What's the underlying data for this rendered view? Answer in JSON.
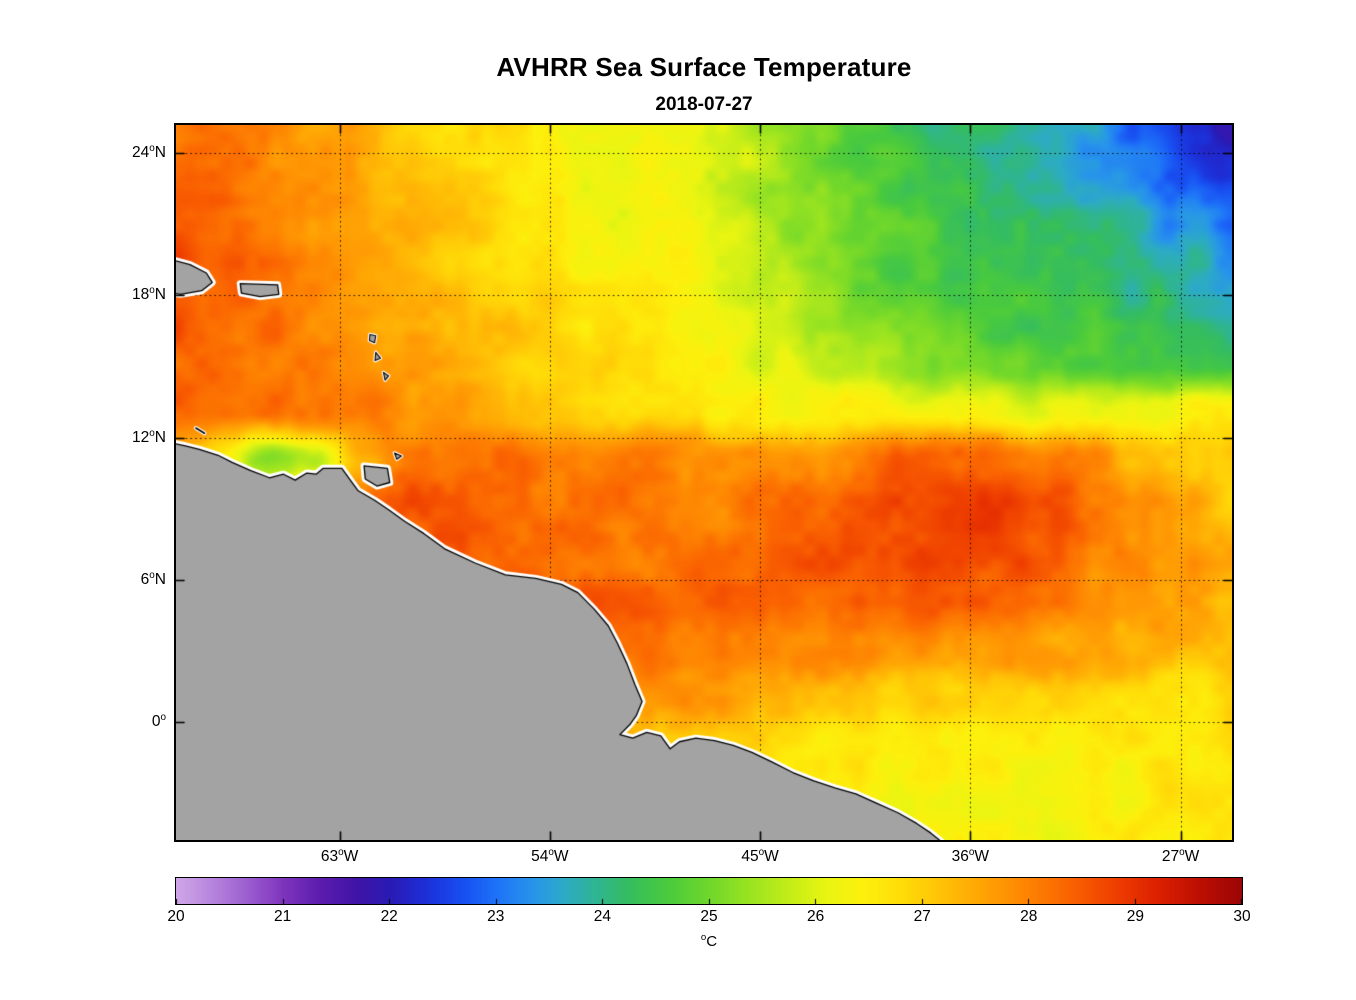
{
  "chart_data": {
    "type": "heatmap",
    "title": "AVHRR Sea Surface Temperature",
    "subtitle": "2018-07-27",
    "degree_glyph": "o",
    "x_axis": {
      "range": [
        -70,
        -24.8
      ],
      "ticks": [
        {
          "value": -63,
          "num": "63",
          "hemi": "W",
          "text": "63°W"
        },
        {
          "value": -54,
          "num": "54",
          "hemi": "W",
          "text": "54°W"
        },
        {
          "value": -45,
          "num": "45",
          "hemi": "W",
          "text": "45°W"
        },
        {
          "value": -36,
          "num": "36",
          "hemi": "W",
          "text": "36°W"
        },
        {
          "value": -27,
          "num": "27",
          "hemi": "W",
          "text": "27°W"
        }
      ]
    },
    "y_axis": {
      "range": [
        -5,
        25.2
      ],
      "ticks": [
        {
          "value": 24,
          "num": "24",
          "hemi": "N",
          "text": "24°N"
        },
        {
          "value": 18,
          "num": "18",
          "hemi": "N",
          "text": "18°N"
        },
        {
          "value": 12,
          "num": "12",
          "hemi": "N",
          "text": "12°N"
        },
        {
          "value": 6,
          "num": "6",
          "hemi": "N",
          "text": "6°N"
        },
        {
          "value": 0,
          "num": "0",
          "hemi": "",
          "text": "0°"
        }
      ]
    },
    "grid_lines": {
      "lon": [
        -63,
        -54,
        -45,
        -36,
        -27
      ],
      "lat": [
        24,
        18,
        12,
        6,
        0
      ],
      "style": "dotted"
    },
    "colorbar": {
      "range": [
        20,
        30
      ],
      "ticks": [
        20,
        21,
        22,
        23,
        24,
        25,
        26,
        27,
        28,
        29,
        30
      ],
      "unit": "°C",
      "unit_letter": "C",
      "colormap_stops": [
        [
          20.0,
          "#cfa7e8"
        ],
        [
          20.35,
          "#b583dc"
        ],
        [
          20.7,
          "#9a5ace"
        ],
        [
          21.0,
          "#7e35bc"
        ],
        [
          21.35,
          "#5d1cae"
        ],
        [
          21.7,
          "#3f14a6"
        ],
        [
          22.0,
          "#2a1ab4"
        ],
        [
          22.35,
          "#1c30d8"
        ],
        [
          22.7,
          "#1850f2"
        ],
        [
          23.0,
          "#1e72f8"
        ],
        [
          23.35,
          "#2795ea"
        ],
        [
          23.65,
          "#2cabc4"
        ],
        [
          23.95,
          "#2fb590"
        ],
        [
          24.25,
          "#35bd5e"
        ],
        [
          24.6,
          "#49ca3e"
        ],
        [
          25.0,
          "#6fd72b"
        ],
        [
          25.4,
          "#9ce420"
        ],
        [
          25.8,
          "#c9ee18"
        ],
        [
          26.1,
          "#e9f511"
        ],
        [
          26.45,
          "#fdf00c"
        ],
        [
          26.8,
          "#ffdd08"
        ],
        [
          27.2,
          "#ffc106"
        ],
        [
          27.6,
          "#ffa104"
        ],
        [
          28.0,
          "#fe8302"
        ],
        [
          28.4,
          "#fa6201"
        ],
        [
          28.8,
          "#ef4000"
        ],
        [
          29.2,
          "#dd2100"
        ],
        [
          29.6,
          "#bd0f03"
        ],
        [
          30.0,
          "#9c0505"
        ]
      ]
    },
    "sst_grid": {
      "lon_min": -70,
      "lon_max": -24.8,
      "lat_min": -5,
      "lat_max": 25.2,
      "rows": 16,
      "cols": 24,
      "units": "°C",
      "values": [
        [
          28.3,
          28.1,
          27.9,
          27.6,
          27.4,
          27.1,
          26.8,
          26.6,
          26.4,
          26.2,
          26.1,
          26.0,
          25.8,
          25.4,
          25.0,
          24.7,
          24.4,
          24.2,
          24.0,
          23.8,
          23.4,
          22.9,
          22.4,
          22.0
        ],
        [
          28.4,
          28.2,
          28.0,
          27.7,
          27.4,
          27.2,
          26.9,
          26.7,
          26.5,
          26.3,
          26.2,
          26.1,
          25.9,
          25.5,
          25.1,
          24.8,
          24.5,
          24.3,
          24.1,
          23.9,
          23.6,
          23.1,
          22.7,
          22.3
        ],
        [
          28.5,
          28.3,
          28.0,
          27.8,
          27.5,
          27.3,
          27.0,
          26.8,
          26.6,
          26.4,
          26.3,
          26.2,
          26.0,
          25.6,
          25.2,
          24.9,
          24.6,
          24.4,
          24.3,
          24.1,
          23.9,
          23.7,
          23.3,
          23.0
        ],
        [
          28.6,
          28.4,
          28.1,
          27.9,
          27.6,
          27.4,
          27.1,
          26.9,
          26.7,
          26.5,
          26.4,
          26.3,
          26.1,
          25.7,
          25.3,
          25.0,
          24.7,
          24.6,
          24.5,
          24.4,
          24.2,
          24.1,
          23.8,
          23.5
        ],
        [
          28.5,
          28.4,
          28.2,
          27.9,
          27.7,
          27.5,
          27.3,
          27.1,
          26.9,
          26.7,
          26.5,
          26.4,
          26.2,
          25.9,
          25.5,
          25.2,
          24.9,
          24.8,
          24.7,
          24.6,
          24.5,
          24.3,
          24.0,
          23.7
        ],
        [
          28.4,
          28.3,
          28.2,
          28.0,
          27.8,
          27.6,
          27.4,
          27.2,
          27.0,
          26.8,
          26.6,
          26.5,
          26.3,
          26.1,
          25.8,
          25.5,
          25.2,
          25.0,
          24.9,
          24.8,
          24.8,
          24.7,
          24.5,
          24.3
        ],
        [
          28.4,
          28.3,
          28.2,
          28.1,
          28.0,
          27.9,
          27.7,
          27.4,
          27.2,
          27.0,
          26.8,
          26.7,
          26.6,
          26.5,
          26.4,
          26.3,
          26.2,
          26.2,
          26.1,
          26.1,
          26.2,
          26.3,
          26.4,
          26.5
        ],
        [
          27.6,
          26.6,
          25.2,
          25.8,
          27.4,
          28.0,
          28.3,
          28.3,
          28.2,
          28.1,
          28.0,
          27.9,
          27.8,
          27.8,
          27.9,
          28.1,
          28.3,
          28.5,
          28.4,
          28.1,
          27.8,
          27.4,
          27.1,
          26.9
        ],
        [
          28.2,
          28.0,
          27.6,
          27.8,
          28.2,
          28.5,
          28.5,
          28.4,
          28.3,
          28.2,
          28.1,
          28.0,
          28.0,
          28.1,
          28.3,
          28.5,
          28.7,
          28.9,
          28.9,
          28.6,
          28.2,
          27.8,
          27.4,
          27.1
        ],
        [
          28.0,
          28.1,
          28.3,
          28.5,
          28.6,
          28.6,
          28.5,
          28.4,
          28.4,
          28.3,
          28.2,
          28.2,
          28.3,
          28.4,
          28.5,
          28.7,
          28.8,
          28.9,
          28.8,
          28.5,
          28.1,
          27.8,
          27.6,
          27.4
        ],
        [
          28.0,
          28.0,
          28.1,
          28.2,
          28.3,
          28.4,
          28.5,
          28.6,
          28.6,
          28.5,
          28.4,
          28.3,
          28.3,
          28.4,
          28.4,
          28.5,
          28.5,
          28.4,
          28.2,
          28.0,
          27.8,
          27.6,
          27.5,
          27.4
        ],
        [
          27.8,
          27.8,
          27.9,
          28.0,
          28.1,
          28.2,
          28.3,
          28.4,
          28.4,
          28.3,
          28.2,
          28.1,
          28.0,
          28.0,
          28.0,
          28.0,
          27.9,
          27.8,
          27.7,
          27.6,
          27.5,
          27.4,
          27.3,
          27.2
        ],
        [
          27.5,
          27.5,
          27.6,
          27.7,
          27.8,
          27.9,
          28.0,
          28.0,
          28.0,
          27.9,
          27.8,
          27.7,
          27.5,
          27.4,
          27.3,
          27.2,
          27.1,
          27.0,
          27.0,
          26.9,
          26.9,
          26.8,
          26.8,
          26.8
        ],
        [
          27.2,
          27.2,
          27.3,
          27.4,
          27.5,
          27.6,
          27.7,
          27.7,
          27.6,
          27.5,
          27.4,
          27.2,
          27.0,
          26.9,
          26.8,
          26.7,
          26.6,
          26.6,
          26.5,
          26.5,
          26.5,
          26.5,
          26.5,
          26.6
        ],
        [
          27.0,
          27.0,
          27.1,
          27.2,
          27.3,
          27.4,
          27.4,
          27.4,
          27.3,
          27.2,
          27.1,
          26.9,
          26.8,
          26.7,
          26.6,
          26.5,
          26.4,
          26.4,
          26.4,
          26.4,
          26.4,
          26.5,
          26.5,
          26.6
        ],
        [
          26.9,
          26.9,
          27.0,
          27.1,
          27.2,
          27.3,
          27.3,
          27.3,
          27.2,
          27.1,
          27.0,
          26.8,
          26.7,
          26.6,
          26.5,
          26.4,
          26.4,
          26.3,
          26.3,
          26.3,
          26.4,
          26.4,
          26.5,
          26.5
        ]
      ]
    },
    "land": {
      "fill": "#a3a3a3",
      "outline": "#000000",
      "coast_gap": "#ffffff",
      "polygons": [
        {
          "name": "south-america",
          "small": false,
          "pts": [
            [
              -70.6,
              11.85
            ],
            [
              -69.6,
              11.65
            ],
            [
              -69.0,
              11.5
            ],
            [
              -68.2,
              11.25
            ],
            [
              -67.6,
              10.95
            ],
            [
              -66.8,
              10.6
            ],
            [
              -66.0,
              10.3
            ],
            [
              -65.4,
              10.45
            ],
            [
              -64.9,
              10.2
            ],
            [
              -64.4,
              10.5
            ],
            [
              -64.0,
              10.45
            ],
            [
              -63.7,
              10.7
            ],
            [
              -62.9,
              10.7
            ],
            [
              -62.5,
              10.15
            ],
            [
              -62.2,
              9.75
            ],
            [
              -61.5,
              9.35
            ],
            [
              -60.9,
              8.95
            ],
            [
              -60.2,
              8.45
            ],
            [
              -59.4,
              7.95
            ],
            [
              -58.5,
              7.3
            ],
            [
              -57.2,
              6.7
            ],
            [
              -55.9,
              6.2
            ],
            [
              -54.6,
              6.05
            ],
            [
              -53.5,
              5.8
            ],
            [
              -52.8,
              5.45
            ],
            [
              -52.1,
              4.75
            ],
            [
              -51.5,
              4.05
            ],
            [
              -51.1,
              3.3
            ],
            [
              -50.7,
              2.45
            ],
            [
              -50.35,
              1.55
            ],
            [
              -50.05,
              0.85
            ],
            [
              -50.3,
              0.25
            ],
            [
              -50.55,
              -0.1
            ],
            [
              -51.0,
              -0.55
            ],
            [
              -50.45,
              -0.7
            ],
            [
              -49.85,
              -0.45
            ],
            [
              -49.25,
              -0.6
            ],
            [
              -48.85,
              -1.15
            ],
            [
              -48.45,
              -0.85
            ],
            [
              -47.75,
              -0.7
            ],
            [
              -46.95,
              -0.8
            ],
            [
              -46.15,
              -1.0
            ],
            [
              -45.35,
              -1.3
            ],
            [
              -44.5,
              -1.7
            ],
            [
              -43.6,
              -2.15
            ],
            [
              -42.7,
              -2.5
            ],
            [
              -41.8,
              -2.8
            ],
            [
              -40.9,
              -3.05
            ],
            [
              -40.0,
              -3.45
            ],
            [
              -39.1,
              -3.85
            ],
            [
              -38.3,
              -4.3
            ],
            [
              -37.7,
              -4.7
            ],
            [
              -37.2,
              -5.1
            ],
            [
              -36.9,
              -5.6
            ],
            [
              -70.6,
              -5.6
            ]
          ]
        },
        {
          "name": "hispaniola-east",
          "small": false,
          "pts": [
            [
              -70.5,
              19.6
            ],
            [
              -69.4,
              19.3
            ],
            [
              -68.7,
              18.95
            ],
            [
              -68.45,
              18.55
            ],
            [
              -68.9,
              18.2
            ],
            [
              -69.8,
              18.05
            ],
            [
              -70.5,
              18.15
            ]
          ]
        },
        {
          "name": "puerto-rico",
          "small": false,
          "pts": [
            [
              -67.25,
              18.5
            ],
            [
              -65.65,
              18.45
            ],
            [
              -65.6,
              18.05
            ],
            [
              -66.4,
              17.95
            ],
            [
              -67.2,
              18.1
            ]
          ]
        },
        {
          "name": "trinidad",
          "small": false,
          "pts": [
            [
              -61.95,
              10.8
            ],
            [
              -60.95,
              10.7
            ],
            [
              -60.85,
              10.1
            ],
            [
              -61.4,
              9.95
            ],
            [
              -61.9,
              10.25
            ]
          ]
        },
        {
          "name": "tobago",
          "small": true,
          "pts": [
            [
              -60.65,
              11.35
            ],
            [
              -60.35,
              11.22
            ],
            [
              -60.55,
              11.08
            ]
          ]
        },
        {
          "name": "guadeloupe",
          "small": true,
          "pts": [
            [
              -61.7,
              16.35
            ],
            [
              -61.45,
              16.3
            ],
            [
              -61.5,
              16.0
            ],
            [
              -61.72,
              16.1
            ]
          ]
        },
        {
          "name": "dominica",
          "small": true,
          "pts": [
            [
              -61.45,
              15.6
            ],
            [
              -61.25,
              15.35
            ],
            [
              -61.48,
              15.25
            ]
          ]
        },
        {
          "name": "martinique",
          "small": true,
          "pts": [
            [
              -61.12,
              14.75
            ],
            [
              -60.9,
              14.6
            ],
            [
              -61.05,
              14.42
            ]
          ]
        }
      ],
      "lines": [
        {
          "name": "curacao",
          "pts": [
            [
              -69.15,
              12.4
            ],
            [
              -68.78,
              12.18
            ]
          ]
        }
      ]
    }
  }
}
